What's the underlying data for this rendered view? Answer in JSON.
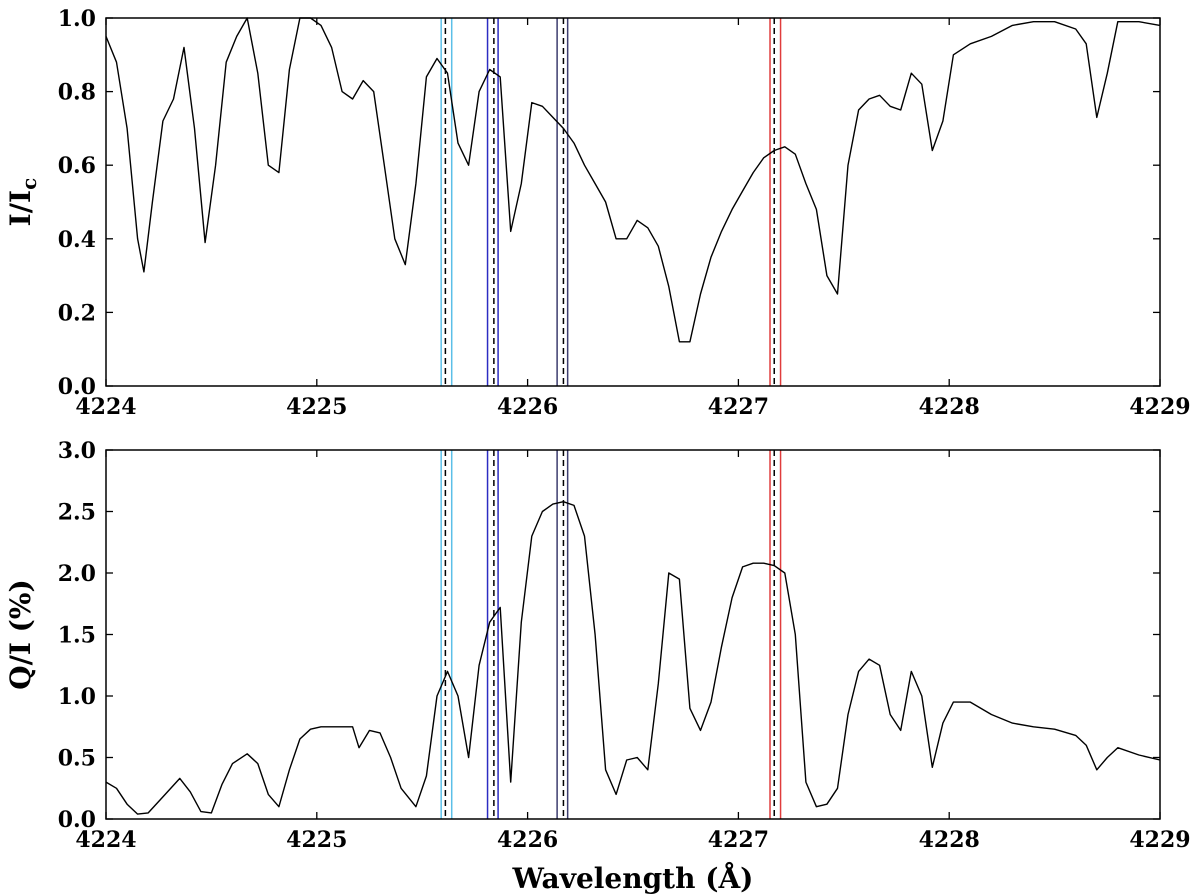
{
  "chart_data": [
    {
      "type": "line",
      "xlim": [
        4224,
        4229
      ],
      "ylim": [
        0.0,
        1.0
      ],
      "xticks": [
        "4224",
        "4225",
        "4226",
        "4227",
        "4228",
        "4229"
      ],
      "yticks": [
        "0.0",
        "0.2",
        "0.4",
        "0.6",
        "0.8",
        "1.0"
      ],
      "ylabel": "I/I",
      "ylabel_sub": "c",
      "xlabel": "",
      "series": [
        {
          "x": [
            4224.0,
            4224.05,
            4224.1,
            4224.15,
            4224.18,
            4224.22,
            4224.27,
            4224.32,
            4224.37,
            4224.42,
            4224.47,
            4224.52,
            4224.57,
            4224.62,
            4224.67,
            4224.72,
            4224.77,
            4224.82,
            4224.87,
            4224.92,
            4224.97,
            4225.02,
            4225.07,
            4225.12,
            4225.17,
            4225.22,
            4225.27,
            4225.32,
            4225.37,
            4225.42,
            4225.47,
            4225.52,
            4225.57,
            4225.62,
            4225.67,
            4225.72,
            4225.77,
            4225.82,
            4225.87,
            4225.92,
            4225.97,
            4226.02,
            4226.07,
            4226.12,
            4226.17,
            4226.22,
            4226.27,
            4226.32,
            4226.37,
            4226.42,
            4226.47,
            4226.52,
            4226.57,
            4226.62,
            4226.67,
            4226.72,
            4226.77,
            4226.82,
            4226.87,
            4226.92,
            4226.97,
            4227.02,
            4227.07,
            4227.12,
            4227.17,
            4227.22,
            4227.27,
            4227.32,
            4227.37,
            4227.42,
            4227.47,
            4227.52,
            4227.57,
            4227.62,
            4227.67,
            4227.72,
            4227.77,
            4227.82,
            4227.87,
            4227.92,
            4227.97,
            4228.02,
            4228.1,
            4228.2,
            4228.3,
            4228.4,
            4228.5,
            4228.6,
            4228.65,
            4228.7,
            4228.75,
            4228.8,
            4228.9,
            4229.0
          ],
          "values": [
            0.95,
            0.88,
            0.7,
            0.4,
            0.31,
            0.5,
            0.72,
            0.78,
            0.92,
            0.7,
            0.39,
            0.6,
            0.88,
            0.95,
            1.0,
            0.85,
            0.6,
            0.58,
            0.86,
            1.0,
            1.0,
            0.98,
            0.92,
            0.8,
            0.78,
            0.83,
            0.8,
            0.6,
            0.4,
            0.33,
            0.55,
            0.84,
            0.89,
            0.85,
            0.66,
            0.6,
            0.8,
            0.86,
            0.84,
            0.42,
            0.55,
            0.77,
            0.76,
            0.73,
            0.7,
            0.66,
            0.6,
            0.55,
            0.5,
            0.4,
            0.4,
            0.45,
            0.43,
            0.38,
            0.27,
            0.12,
            0.12,
            0.25,
            0.35,
            0.42,
            0.48,
            0.53,
            0.58,
            0.62,
            0.64,
            0.65,
            0.63,
            0.55,
            0.48,
            0.3,
            0.25,
            0.6,
            0.75,
            0.78,
            0.79,
            0.76,
            0.75,
            0.85,
            0.82,
            0.64,
            0.72,
            0.9,
            0.93,
            0.95,
            0.98,
            0.99,
            0.99,
            0.97,
            0.93,
            0.73,
            0.85,
            0.99,
            0.99,
            0.98
          ]
        }
      ],
      "vlines": [
        {
          "x": 4225.59,
          "color": "#5bbfe8",
          "style": "solid"
        },
        {
          "x": 4225.61,
          "color": "#000000",
          "style": "dashed"
        },
        {
          "x": 4225.64,
          "color": "#5bbfe8",
          "style": "solid"
        },
        {
          "x": 4225.81,
          "color": "#2c2cc2",
          "style": "solid"
        },
        {
          "x": 4225.84,
          "color": "#000000",
          "style": "dashed"
        },
        {
          "x": 4225.86,
          "color": "#2c2cc2",
          "style": "solid"
        },
        {
          "x": 4226.14,
          "color": "#3c3c6e",
          "style": "solid"
        },
        {
          "x": 4226.17,
          "color": "#000000",
          "style": "dashed"
        },
        {
          "x": 4226.19,
          "color": "#3c3c6e",
          "style": "solid"
        },
        {
          "x": 4227.15,
          "color": "#e03c3c",
          "style": "solid"
        },
        {
          "x": 4227.17,
          "color": "#000000",
          "style": "dashed"
        },
        {
          "x": 4227.2,
          "color": "#e03c3c",
          "style": "solid"
        }
      ]
    },
    {
      "type": "line",
      "xlim": [
        4224,
        4229
      ],
      "ylim": [
        0.0,
        3.0
      ],
      "xticks": [
        "4224",
        "4225",
        "4226",
        "4227",
        "4228",
        "4229"
      ],
      "yticks": [
        "0.0",
        "0.5",
        "1.0",
        "1.5",
        "2.0",
        "2.5",
        "3.0"
      ],
      "ylabel": "Q/I (%)",
      "ylabel_sub": "",
      "xlabel": "Wavelength (Å)",
      "series": [
        {
          "x": [
            4224.0,
            4224.05,
            4224.1,
            4224.15,
            4224.2,
            4224.27,
            4224.35,
            4224.4,
            4224.45,
            4224.5,
            4224.55,
            4224.6,
            4224.67,
            4224.72,
            4224.77,
            4224.82,
            4224.87,
            4224.92,
            4224.97,
            4225.02,
            4225.1,
            4225.17,
            4225.2,
            4225.25,
            4225.3,
            4225.35,
            4225.4,
            4225.47,
            4225.52,
            4225.57,
            4225.62,
            4225.67,
            4225.72,
            4225.77,
            4225.82,
            4225.87,
            4225.92,
            4225.97,
            4226.02,
            4226.07,
            4226.12,
            4226.17,
            4226.22,
            4226.27,
            4226.32,
            4226.37,
            4226.42,
            4226.47,
            4226.52,
            4226.57,
            4226.62,
            4226.67,
            4226.72,
            4226.77,
            4226.82,
            4226.87,
            4226.92,
            4226.97,
            4227.02,
            4227.07,
            4227.12,
            4227.17,
            4227.22,
            4227.27,
            4227.32,
            4227.37,
            4227.42,
            4227.47,
            4227.52,
            4227.57,
            4227.62,
            4227.67,
            4227.72,
            4227.77,
            4227.82,
            4227.87,
            4227.92,
            4227.97,
            4228.02,
            4228.1,
            4228.2,
            4228.3,
            4228.4,
            4228.5,
            4228.6,
            4228.65,
            4228.7,
            4228.75,
            4228.8,
            4228.9,
            4229.0
          ],
          "values": [
            0.3,
            0.25,
            0.12,
            0.04,
            0.05,
            0.18,
            0.33,
            0.22,
            0.06,
            0.05,
            0.28,
            0.45,
            0.53,
            0.45,
            0.2,
            0.1,
            0.4,
            0.65,
            0.73,
            0.75,
            0.75,
            0.75,
            0.58,
            0.72,
            0.7,
            0.5,
            0.25,
            0.1,
            0.35,
            1.0,
            1.2,
            1.0,
            0.5,
            1.25,
            1.6,
            1.72,
            0.3,
            1.6,
            2.3,
            2.5,
            2.56,
            2.58,
            2.55,
            2.3,
            1.5,
            0.4,
            0.2,
            0.48,
            0.5,
            0.4,
            1.1,
            2.0,
            1.95,
            0.9,
            0.72,
            0.95,
            1.4,
            1.8,
            2.05,
            2.08,
            2.08,
            2.06,
            2.0,
            1.5,
            0.3,
            0.1,
            0.12,
            0.25,
            0.85,
            1.2,
            1.3,
            1.25,
            0.85,
            0.72,
            1.2,
            1.0,
            0.42,
            0.78,
            0.95,
            0.95,
            0.85,
            0.78,
            0.75,
            0.73,
            0.68,
            0.6,
            0.4,
            0.5,
            0.58,
            0.52,
            0.48
          ]
        }
      ],
      "vlines": [
        {
          "x": 4225.59,
          "color": "#5bbfe8",
          "style": "solid"
        },
        {
          "x": 4225.61,
          "color": "#000000",
          "style": "dashed"
        },
        {
          "x": 4225.64,
          "color": "#5bbfe8",
          "style": "solid"
        },
        {
          "x": 4225.81,
          "color": "#2c2cc2",
          "style": "solid"
        },
        {
          "x": 4225.84,
          "color": "#000000",
          "style": "dashed"
        },
        {
          "x": 4225.86,
          "color": "#2c2cc2",
          "style": "solid"
        },
        {
          "x": 4226.14,
          "color": "#3c3c6e",
          "style": "solid"
        },
        {
          "x": 4226.17,
          "color": "#000000",
          "style": "dashed"
        },
        {
          "x": 4226.19,
          "color": "#3c3c6e",
          "style": "solid"
        },
        {
          "x": 4227.15,
          "color": "#e03c3c",
          "style": "solid"
        },
        {
          "x": 4227.17,
          "color": "#000000",
          "style": "dashed"
        },
        {
          "x": 4227.2,
          "color": "#e03c3c",
          "style": "solid"
        }
      ]
    }
  ]
}
